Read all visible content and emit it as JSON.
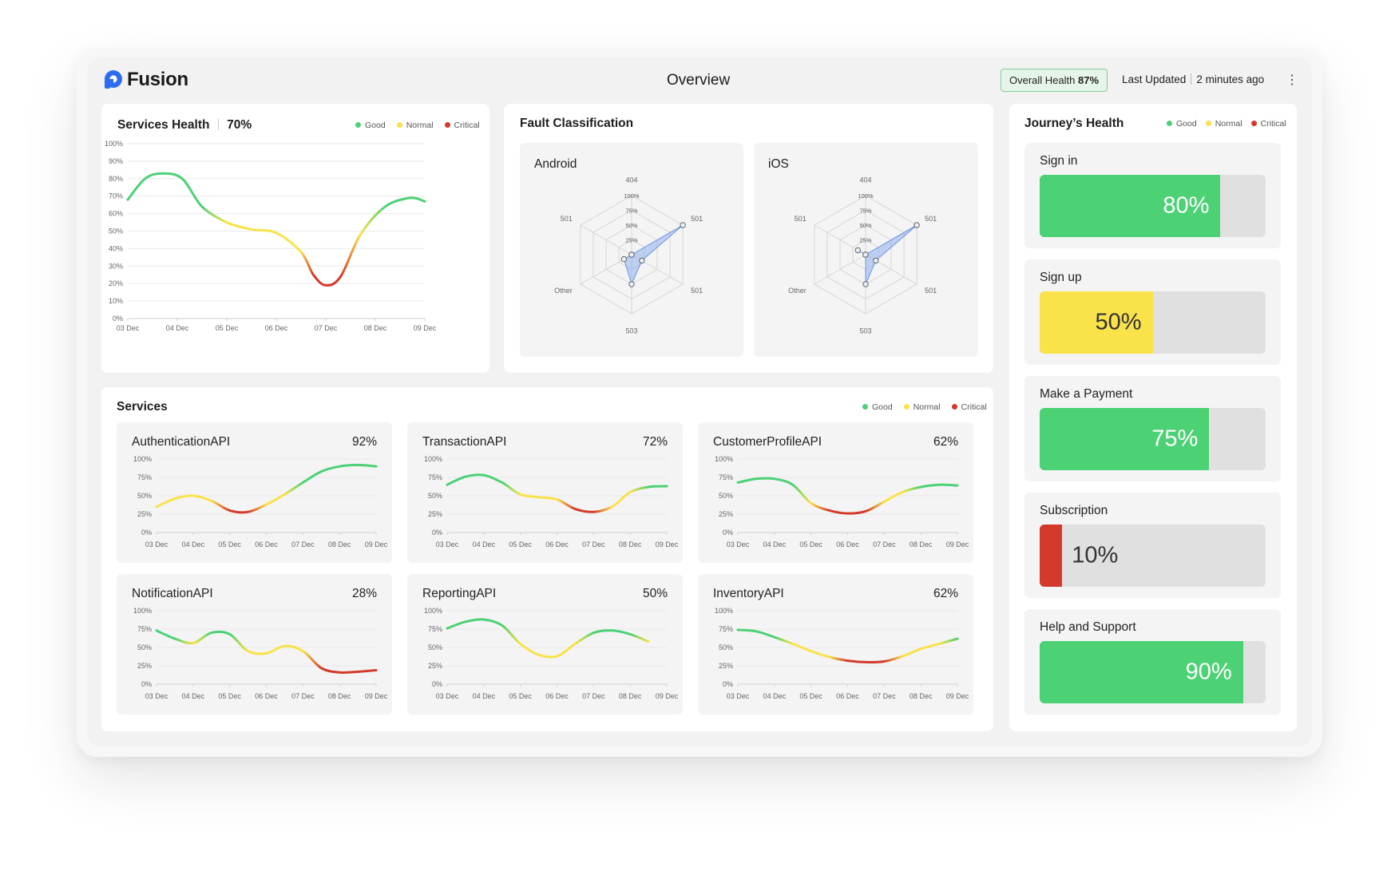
{
  "app": {
    "name": "Fusion"
  },
  "header": {
    "title": "Overview",
    "overall_health_label": "Overall Health",
    "overall_health_value": "87%",
    "last_updated_label": "Last Updated",
    "last_updated_value": "2 minutes ago",
    "menu_icon": "kebab-icon"
  },
  "colors": {
    "good": "#4cd175",
    "normal": "#fae24a",
    "critical": "#d33a2c",
    "radar": "#8fb1ee"
  },
  "legend": {
    "good": "Good",
    "normal": "Normal",
    "critical": "Critical"
  },
  "services_health": {
    "title": "Services Health",
    "value": "70%"
  },
  "fault_classification": {
    "title": "Fault Classification"
  },
  "services": {
    "title": "Services"
  },
  "journeys": {
    "title": "Journey’s Health",
    "items": [
      {
        "label": "Sign in",
        "value": "80%",
        "fraction": 0.8,
        "status": "good"
      },
      {
        "label": "Sign up",
        "value": "50%",
        "fraction": 0.5,
        "status": "normal"
      },
      {
        "label": "Make a Payment",
        "value": "75%",
        "fraction": 0.75,
        "status": "good"
      },
      {
        "label": "Subscription",
        "value": "10%",
        "fraction": 0.1,
        "status": "critical"
      },
      {
        "label": "Help and Support",
        "value": "90%",
        "fraction": 0.9,
        "status": "good"
      }
    ]
  },
  "chart_data": [
    {
      "type": "line",
      "id": "services-health",
      "title": "Services Health",
      "categories": [
        "03 Dec",
        "04 Dec",
        "05 Dec",
        "06 Dec",
        "07 Dec",
        "08 Dec",
        "09 Dec"
      ],
      "y_ticks": [
        "0%",
        "10%",
        "20%",
        "30%",
        "40%",
        "50%",
        "60%",
        "70%",
        "80%",
        "90%",
        "100%"
      ],
      "ylim": [
        0,
        100
      ],
      "x": [
        0,
        0.35,
        0.7,
        1.1,
        1.5,
        2.0,
        2.5,
        3.0,
        3.5,
        3.75,
        4.0,
        4.3,
        4.7,
        5.2,
        5.7,
        6.0
      ],
      "y": [
        68,
        80,
        83,
        80,
        64,
        55,
        51,
        49,
        38,
        25,
        19,
        24,
        48,
        64,
        69,
        67
      ],
      "grid": true,
      "legend": "top-right"
    },
    {
      "type": "radar",
      "id": "android",
      "title": "Android",
      "axes": [
        "404",
        "501",
        "501",
        "503",
        "Other",
        "501"
      ],
      "ring_labels": [
        "25%",
        "50%",
        "75%",
        "100%"
      ],
      "values": [
        0,
        100,
        20,
        50,
        15,
        0
      ]
    },
    {
      "type": "radar",
      "id": "ios",
      "title": "iOS",
      "axes": [
        "404",
        "501",
        "501",
        "503",
        "Other",
        "501"
      ],
      "ring_labels": [
        "25%",
        "50%",
        "75%",
        "100%"
      ],
      "values": [
        0,
        100,
        20,
        50,
        0,
        15
      ]
    },
    {
      "type": "line",
      "id": "auth",
      "title": "AuthenticationAPI",
      "value": "92%",
      "categories": [
        "03 Dec",
        "04 Dec",
        "05 Dec",
        "06 Dec",
        "07 Dec",
        "08 Dec",
        "09 Dec"
      ],
      "y_ticks": [
        "0%",
        "25%",
        "50%",
        "75%",
        "100%"
      ],
      "ylim": [
        0,
        100
      ],
      "x": [
        0,
        0.5,
        1,
        1.5,
        2,
        2.5,
        3,
        3.5,
        4,
        4.5,
        5,
        5.5,
        6
      ],
      "y": [
        35,
        46,
        50,
        43,
        30,
        28,
        38,
        52,
        68,
        83,
        90,
        92,
        90
      ]
    },
    {
      "type": "line",
      "id": "transaction",
      "title": "TransactionAPI",
      "value": "72%",
      "categories": [
        "03 Dec",
        "04 Dec",
        "05 Dec",
        "06 Dec",
        "07 Dec",
        "08 Dec",
        "09 Dec"
      ],
      "y_ticks": [
        "0%",
        "25%",
        "50%",
        "75%",
        "100%"
      ],
      "ylim": [
        0,
        100
      ],
      "x": [
        0,
        0.5,
        1,
        1.5,
        2,
        2.5,
        3,
        3.5,
        4,
        4.5,
        5,
        5.5,
        6
      ],
      "y": [
        65,
        76,
        78,
        68,
        52,
        48,
        45,
        32,
        28,
        35,
        55,
        62,
        63
      ]
    },
    {
      "type": "line",
      "id": "customer-profile",
      "title": "CustomerProfileAPI",
      "value": "62%",
      "categories": [
        "03 Dec",
        "04 Dec",
        "05 Dec",
        "06 Dec",
        "07 Dec",
        "08 Dec",
        "09 Dec"
      ],
      "y_ticks": [
        "0%",
        "25%",
        "50%",
        "75%",
        "100%"
      ],
      "ylim": [
        0,
        100
      ],
      "x": [
        0,
        0.5,
        1,
        1.5,
        2,
        2.5,
        3,
        3.5,
        4,
        4.5,
        5,
        5.5,
        6
      ],
      "y": [
        68,
        73,
        73,
        65,
        40,
        30,
        26,
        29,
        42,
        55,
        62,
        65,
        64
      ]
    },
    {
      "type": "line",
      "id": "notification",
      "title": "NotificationAPI",
      "value": "28%",
      "categories": [
        "03 Dec",
        "04 Dec",
        "05 Dec",
        "06 Dec",
        "07 Dec",
        "08 Dec",
        "09 Dec"
      ],
      "y_ticks": [
        "0%",
        "25%",
        "50%",
        "75%",
        "100%"
      ],
      "ylim": [
        0,
        100
      ],
      "x": [
        0,
        0.5,
        1,
        1.5,
        2,
        2.5,
        3,
        3.5,
        4,
        4.5,
        5,
        5.5,
        6
      ],
      "y": [
        73,
        62,
        56,
        70,
        68,
        45,
        42,
        52,
        45,
        22,
        16,
        17,
        19
      ]
    },
    {
      "type": "line",
      "id": "reporting",
      "title": "ReportingAPI",
      "value": "50%",
      "categories": [
        "03 Dec",
        "04 Dec",
        "05 Dec",
        "06 Dec",
        "07 Dec",
        "08 Dec",
        "09 Dec"
      ],
      "y_ticks": [
        "0%",
        "25%",
        "50%",
        "75%",
        "100%"
      ],
      "ylim": [
        0,
        100
      ],
      "x": [
        0,
        0.5,
        1,
        1.5,
        2,
        2.5,
        3,
        3.5,
        4,
        4.5,
        5,
        5.5
      ],
      "y": [
        76,
        85,
        88,
        80,
        55,
        40,
        38,
        55,
        70,
        73,
        68,
        58
      ]
    },
    {
      "type": "line",
      "id": "inventory",
      "title": "InventoryAPI",
      "value": "62%",
      "categories": [
        "03 Dec",
        "04 Dec",
        "05 Dec",
        "06 Dec",
        "07 Dec",
        "08 Dec",
        "09 Dec"
      ],
      "y_ticks": [
        "0%",
        "25%",
        "50%",
        "75%",
        "100%"
      ],
      "ylim": [
        0,
        100
      ],
      "x": [
        0,
        0.5,
        1,
        1.5,
        2,
        2.5,
        3,
        3.5,
        4,
        4.5,
        5,
        5.5,
        6
      ],
      "y": [
        74,
        72,
        64,
        55,
        45,
        37,
        32,
        30,
        31,
        38,
        48,
        55,
        62
      ]
    }
  ]
}
